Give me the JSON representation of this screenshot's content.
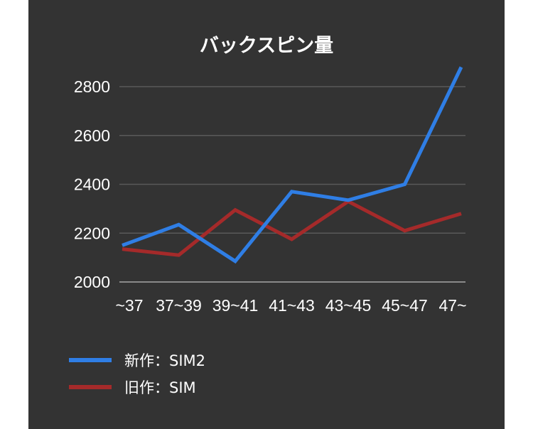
{
  "chart_data": {
    "type": "line",
    "title": "バックスピン量",
    "xlabel": "",
    "ylabel": "",
    "categories": [
      "~37",
      "37~39",
      "39~41",
      "41~43",
      "43~45",
      "45~47",
      "47~"
    ],
    "ylim": [
      2000,
      2800
    ],
    "yticks": [
      2000,
      2200,
      2400,
      2600,
      2800
    ],
    "grid": true,
    "legend_position": "bottom-left",
    "series": [
      {
        "name": "新作：SIM2",
        "color": "#2f7ee5",
        "values": [
          2150,
          2235,
          2085,
          2370,
          2335,
          2400,
          2880
        ]
      },
      {
        "name": "旧作：SIM",
        "color": "#a52a2a",
        "values": [
          2135,
          2110,
          2295,
          2175,
          2330,
          2210,
          2280
        ]
      }
    ]
  },
  "colors": {
    "background": "#333333",
    "grid": "#5a5a5a",
    "text": "#ffffff"
  }
}
